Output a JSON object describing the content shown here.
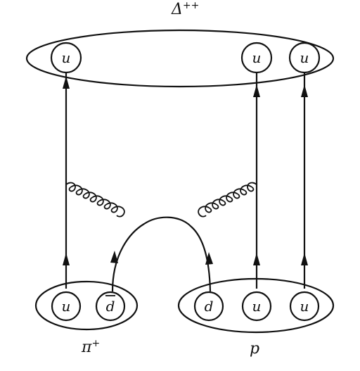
{
  "diagram": {
    "top_label": "Δ",
    "top_label_sup": "++",
    "final_state_quarks": [
      "u",
      "u",
      "u"
    ],
    "pion_label": "π",
    "pion_label_sup": "+",
    "pion_quarks": [
      "u",
      "d"
    ],
    "proton_label": "p",
    "proton_quarks": [
      "d",
      "u",
      "u"
    ]
  }
}
